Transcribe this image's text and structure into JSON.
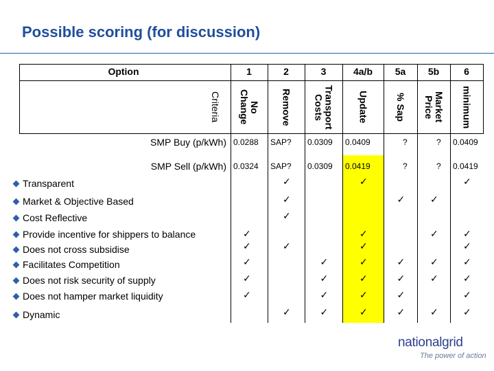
{
  "title": "Possible scoring (for discussion)",
  "header": {
    "option_label": "Option",
    "criteria_label": "Criteria",
    "options": [
      {
        "num": "1",
        "name": "No\nChange"
      },
      {
        "num": "2",
        "name": "Remove"
      },
      {
        "num": "3",
        "name": "Transport\nCosts"
      },
      {
        "num": "4a/b",
        "name": "Update"
      },
      {
        "num": "5a",
        "name": "% Sap"
      },
      {
        "num": "5b",
        "name": "Market\nPrice"
      },
      {
        "num": "6",
        "name": "minimum"
      }
    ]
  },
  "price_rows": [
    {
      "label": "SMP Buy (p/kWh)",
      "values": [
        "0.0288",
        "SAP?",
        "0.0309",
        "0.0409",
        "?",
        "?",
        "0.0409"
      ]
    },
    {
      "label": "SMP Sell (p/kWh)",
      "values": [
        "0.0324",
        "SAP?",
        "0.0309",
        "0.0419",
        "?",
        "?",
        "0.0419"
      ]
    }
  ],
  "criteria": [
    {
      "label": "Transparent",
      "bullet": true,
      "checks": [
        false,
        true,
        false,
        true,
        false,
        false,
        true
      ]
    },
    {
      "label": "Market & Objective Based",
      "bullet": true,
      "checks": [
        false,
        true,
        false,
        false,
        true,
        true,
        false
      ]
    },
    {
      "label": "Cost Reflective",
      "bullet": true,
      "checks": [
        false,
        true,
        false,
        false,
        false,
        false,
        false
      ]
    },
    {
      "label": "Provide incentive for shippers to balance",
      "bullet": true,
      "checks": [
        true,
        false,
        false,
        true,
        false,
        true,
        true
      ]
    },
    {
      "label": "Does not cross subsidise",
      "bullet": true,
      "checks": [
        true,
        true,
        false,
        true,
        false,
        false,
        true
      ]
    },
    {
      "label": "Facilitates Competition",
      "bullet": true,
      "checks": [
        true,
        false,
        true,
        true,
        true,
        true,
        true
      ]
    },
    {
      "label": "Does not risk security of supply",
      "bullet": true,
      "checks": [
        true,
        false,
        true,
        true,
        true,
        true,
        true
      ]
    },
    {
      "label": "Does not hamper market liquidity",
      "bullet": true,
      "checks": [
        true,
        false,
        true,
        true,
        true,
        false,
        true
      ]
    },
    {
      "label": "Dynamic",
      "bullet": true,
      "checks": [
        false,
        true,
        true,
        true,
        true,
        true,
        true
      ]
    }
  ],
  "check_glyph": "✓",
  "logo": {
    "name": "nationalgrid",
    "tagline": "The power of action"
  },
  "colors": {
    "title": "#1f4e9c",
    "highlight": "#ffff00",
    "bullet": "#2e5fa8"
  }
}
